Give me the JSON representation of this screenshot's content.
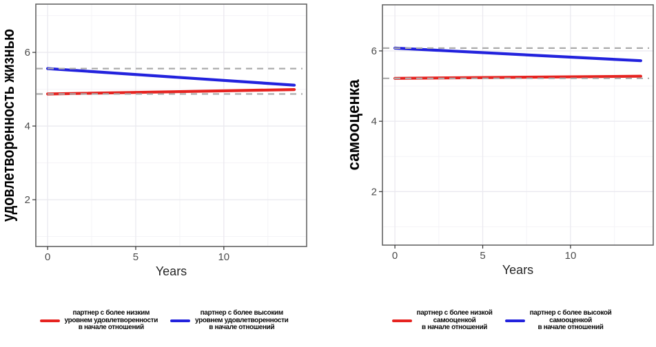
{
  "figure": {
    "xlabel": "Years",
    "colors": {
      "red": "#e62320",
      "blue": "#2222dd",
      "dashed_ref": "#ababab",
      "grid_major": "#eae9ef",
      "grid_minor": "#f4f3f7",
      "panel_border": "#646464",
      "tick_text": "#4b4b4b",
      "axis_text": "#262626"
    }
  },
  "chart_data": [
    {
      "type": "line",
      "title": "",
      "ylabel": "удовлетворенность жизнью",
      "xlabel": "Years",
      "x_ticks": [
        0,
        5,
        10
      ],
      "y_ticks": [
        2,
        4,
        6
      ],
      "x_minor": [
        2.5,
        7.5,
        12.5
      ],
      "y_minor": [
        1,
        3,
        5,
        7
      ],
      "xlim": [
        -0.67,
        14.7
      ],
      "ylim": [
        0.73,
        7.31
      ],
      "grid": true,
      "legend_position": "bottom",
      "series": [
        {
          "name": "партнер с более низким уровнем удовлетворенности в начале отношений",
          "color": "#e62320",
          "x": [
            0,
            14
          ],
          "values": [
            4.87,
            4.99
          ]
        },
        {
          "name": "партнер с более высоким уровнем удовлетворенности в начале отношений",
          "color": "#2222dd",
          "x": [
            0,
            14
          ],
          "values": [
            5.56,
            5.11
          ]
        }
      ],
      "ref_lines": [
        {
          "y": 5.56,
          "style": "dashed",
          "color": "#ababab"
        },
        {
          "y": 4.87,
          "style": "dashed",
          "color": "#ababab"
        }
      ],
      "legend": [
        {
          "color": "#e62320",
          "lines": [
            "партнер с более низким",
            "уровнем удовлетворенности",
            "в начале отношений"
          ]
        },
        {
          "color": "#2222dd",
          "lines": [
            "партнер с более высоким",
            "уровнем удовлетворенности",
            "в начале отношений"
          ]
        }
      ]
    },
    {
      "type": "line",
      "title": "",
      "ylabel": "самооценка",
      "xlabel": "Years",
      "x_ticks": [
        0,
        5,
        10
      ],
      "y_ticks": [
        2,
        4,
        6
      ],
      "x_minor": [
        2.5,
        7.5,
        12.5
      ],
      "y_minor": [
        1,
        3,
        5,
        7
      ],
      "xlim": [
        -0.71,
        14.71
      ],
      "ylim": [
        0.48,
        7.31
      ],
      "grid": true,
      "legend_position": "bottom",
      "series": [
        {
          "name": "партнер с более низкой самооценкой в начале отношений",
          "color": "#e62320",
          "x": [
            0,
            14
          ],
          "values": [
            5.22,
            5.28
          ]
        },
        {
          "name": "партнер с более высокой самооценкой в начале отношений",
          "color": "#2222dd",
          "x": [
            0,
            14
          ],
          "values": [
            6.08,
            5.72
          ]
        }
      ],
      "ref_lines": [
        {
          "y": 6.08,
          "style": "dashed",
          "color": "#ababab"
        },
        {
          "y": 5.22,
          "style": "dashed",
          "color": "#ababab"
        }
      ],
      "legend": [
        {
          "color": "#e62320",
          "lines": [
            "партнер с более низкой",
            "самооценкой",
            "в начале отношений"
          ]
        },
        {
          "color": "#2222dd",
          "lines": [
            "партнер с более высокой",
            "самооценкой",
            "в начале отношений"
          ]
        }
      ]
    }
  ]
}
